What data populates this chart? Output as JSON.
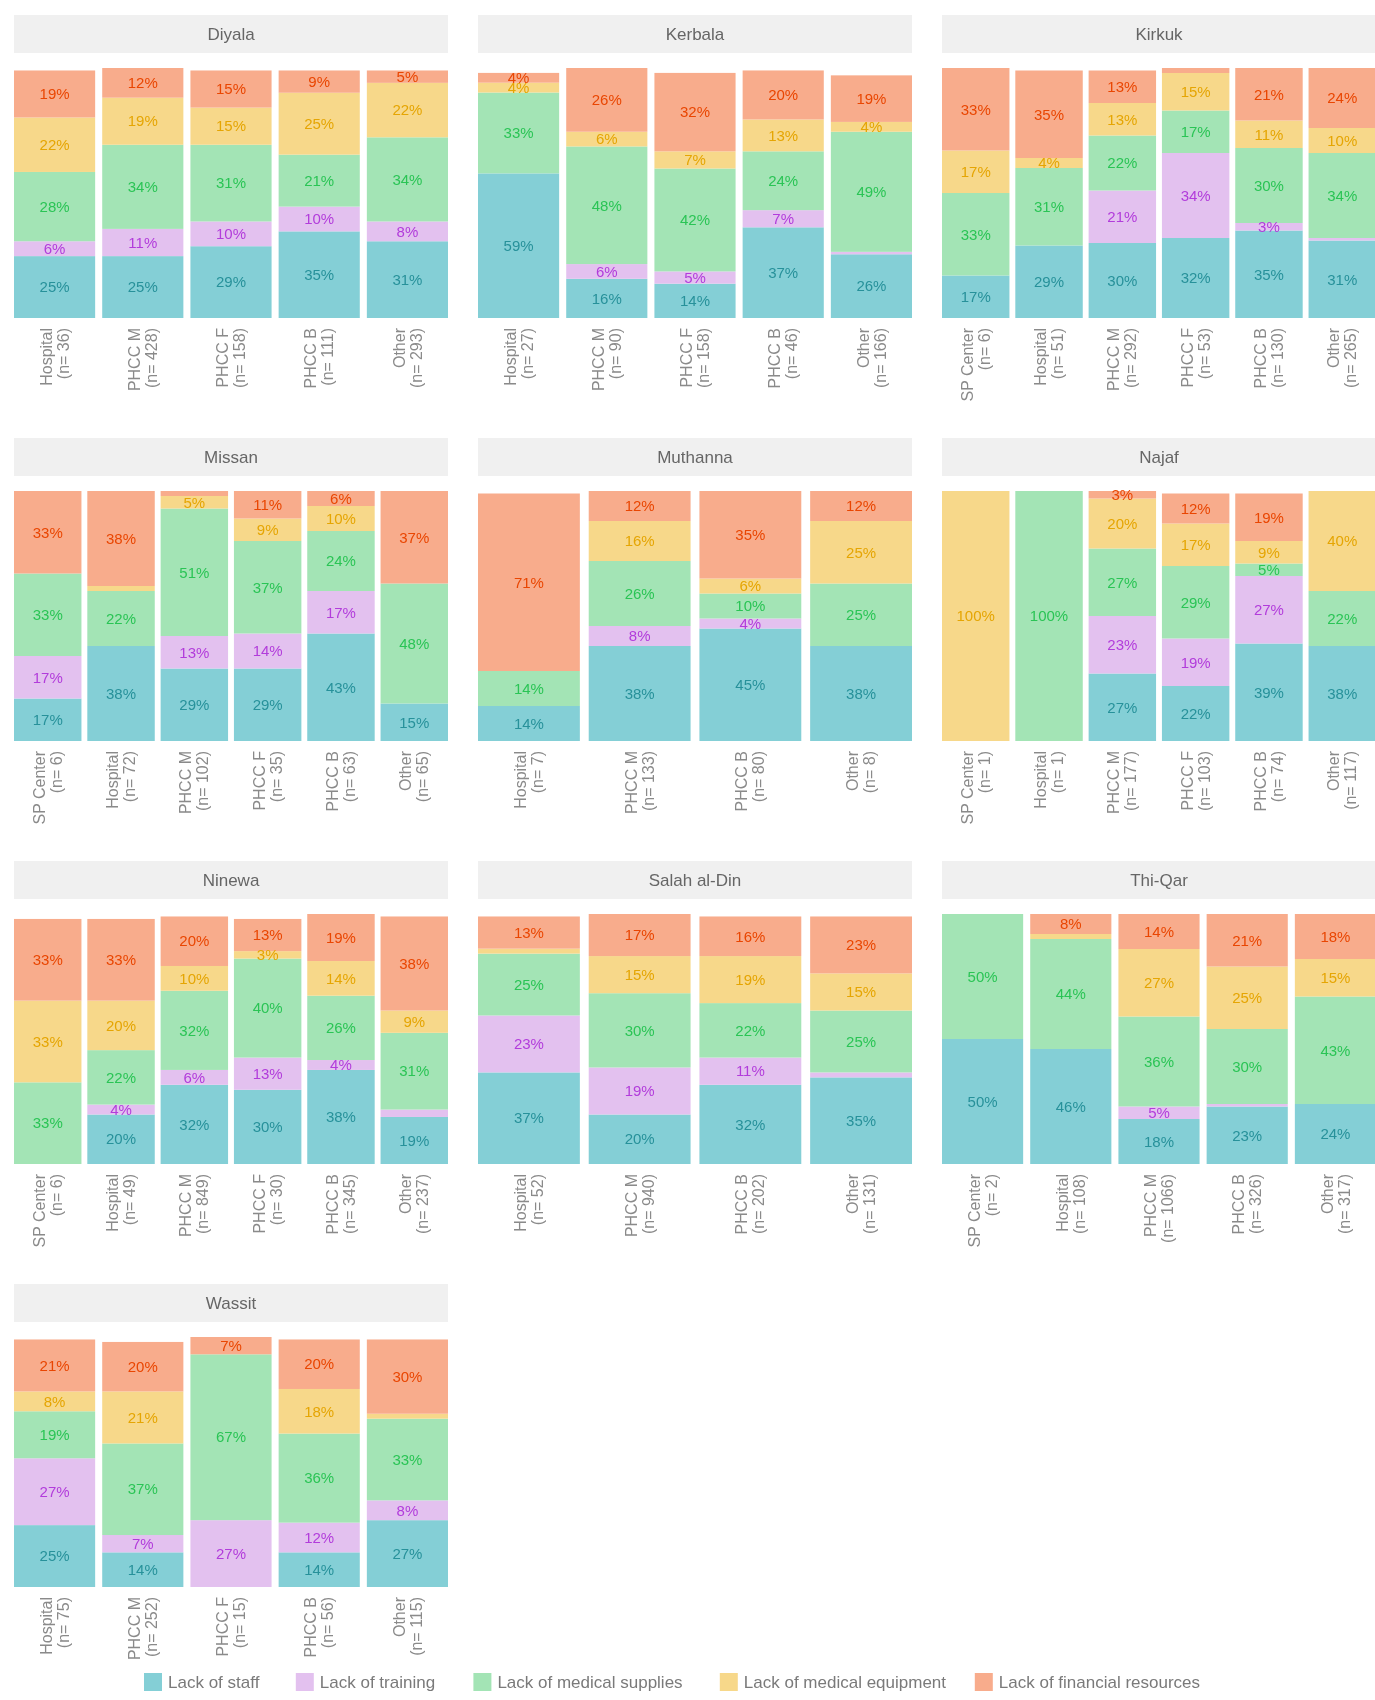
{
  "chart_data": [
    {
      "type": "bar",
      "stacked": true,
      "title": "Diyala",
      "categories": [
        "Hospital\n(n= 36)",
        "PHCC M\n(n= 428)",
        "PHCC F\n(n= 158)",
        "PHCC B\n(n= 111)",
        "Other\n(n= 293)"
      ],
      "tick_labels": "x",
      "legend": "bottom",
      "series": [
        {
          "name": "Lack of staff",
          "color": "#84cfd6",
          "values": [
            25,
            25,
            29,
            35,
            31
          ],
          "value_labels": [
            "25%",
            "25%",
            "29%",
            "35%",
            "31%"
          ]
        },
        {
          "name": "Lack of training",
          "color": "#e3c1ef",
          "values": [
            6,
            11,
            10,
            10,
            8
          ],
          "value_labels": [
            "6%",
            "11%",
            "10%",
            "10%",
            "8%"
          ]
        },
        {
          "name": "Lack of medical supplies",
          "color": "#a3e4b5",
          "values": [
            28,
            34,
            31,
            21,
            34
          ],
          "value_labels": [
            "28%",
            "34%",
            "31%",
            "21%",
            "34%"
          ]
        },
        {
          "name": "Lack of medical equipment",
          "color": "#f7d88a",
          "values": [
            22,
            19,
            15,
            25,
            22
          ],
          "value_labels": [
            "22%",
            "19%",
            "15%",
            "25%",
            "22%"
          ]
        },
        {
          "name": "Lack of financial resources",
          "color": "#f8ac8c",
          "values": [
            19,
            12,
            15,
            9,
            5
          ],
          "value_labels": [
            "19%",
            "12%",
            "15%",
            "9%",
            "5%"
          ]
        }
      ]
    },
    {
      "type": "bar",
      "stacked": true,
      "title": "Kerbala",
      "categories": [
        "Hospital\n(n= 27)",
        "PHCC M\n(n= 90)",
        "PHCC F\n(n= 158)",
        "PHCC B\n(n= 46)",
        "Other\n(n= 166)"
      ],
      "tick_labels": "x",
      "series": [
        {
          "color": "#84cfd6",
          "values": [
            59,
            16,
            14,
            37,
            26
          ],
          "value_labels": [
            "59%",
            "16%",
            "14%",
            "37%",
            "26%"
          ]
        },
        {
          "color": "#e3c1ef",
          "values": [
            0,
            6,
            5,
            7,
            1
          ],
          "value_labels": [
            null,
            "6%",
            "5%",
            "7%",
            null
          ]
        },
        {
          "color": "#a3e4b5",
          "values": [
            33,
            48,
            42,
            24,
            49
          ],
          "value_labels": [
            "33%",
            "48%",
            "42%",
            "24%",
            "49%"
          ]
        },
        {
          "color": "#f7d88a",
          "values": [
            4,
            6,
            7,
            13,
            4
          ],
          "value_labels": [
            "4%",
            "6%",
            "7%",
            "13%",
            "4%"
          ]
        },
        {
          "color": "#f8ac8c",
          "values": [
            4,
            26,
            32,
            20,
            19
          ],
          "value_labels": [
            "4%",
            "26%",
            "32%",
            "20%",
            "19%"
          ]
        }
      ]
    },
    {
      "type": "bar",
      "stacked": true,
      "title": "Kirkuk",
      "categories": [
        "SP Center\n(n= 6)",
        "Hospital\n(n= 51)",
        "PHCC M\n(n= 292)",
        "PHCC F\n(n= 53)",
        "PHCC B\n(n= 130)",
        "Other\n(n= 265)"
      ],
      "tick_labels": "x",
      "series": [
        {
          "color": "#84cfd6",
          "values": [
            17,
            29,
            30,
            32,
            35,
            31
          ],
          "value_labels": [
            "17%",
            "29%",
            "30%",
            "32%",
            "35%",
            "31%"
          ]
        },
        {
          "color": "#e3c1ef",
          "values": [
            0,
            0,
            21,
            34,
            3,
            1
          ],
          "value_labels": [
            null,
            null,
            "21%",
            "34%",
            "3%",
            null
          ]
        },
        {
          "color": "#a3e4b5",
          "values": [
            33,
            31,
            22,
            17,
            30,
            34
          ],
          "value_labels": [
            "33%",
            "31%",
            "22%",
            "17%",
            "30%",
            "34%"
          ]
        },
        {
          "color": "#f7d88a",
          "values": [
            17,
            4,
            13,
            15,
            11,
            10
          ],
          "value_labels": [
            "17%",
            "4%",
            "13%",
            "15%",
            "11%",
            "10%"
          ]
        },
        {
          "color": "#f8ac8c",
          "values": [
            33,
            35,
            13,
            2,
            21,
            24
          ],
          "value_labels": [
            "33%",
            "35%",
            "13%",
            null,
            "21%",
            "24%"
          ]
        }
      ]
    },
    {
      "type": "bar",
      "stacked": true,
      "title": "Missan",
      "categories": [
        "SP Center\n(n= 6)",
        "Hospital\n(n= 72)",
        "PHCC M\n(n= 102)",
        "PHCC F\n(n= 35)",
        "PHCC B\n(n= 63)",
        "Other\n(n= 65)"
      ],
      "tick_labels": "x",
      "series": [
        {
          "color": "#84cfd6",
          "values": [
            17,
            38,
            29,
            29,
            43,
            15
          ],
          "value_labels": [
            "17%",
            "38%",
            "29%",
            "29%",
            "43%",
            "15%"
          ]
        },
        {
          "color": "#e3c1ef",
          "values": [
            17,
            0,
            13,
            14,
            17,
            0
          ],
          "value_labels": [
            "17%",
            null,
            "13%",
            "14%",
            "17%",
            null
          ]
        },
        {
          "color": "#a3e4b5",
          "values": [
            33,
            22,
            51,
            37,
            24,
            48
          ],
          "value_labels": [
            "33%",
            "22%",
            "51%",
            "37%",
            "24%",
            "48%"
          ]
        },
        {
          "color": "#f7d88a",
          "values": [
            0,
            2,
            5,
            9,
            10,
            0
          ],
          "value_labels": [
            null,
            null,
            "5%",
            "9%",
            "10%",
            null
          ]
        },
        {
          "color": "#f8ac8c",
          "values": [
            33,
            38,
            2,
            11,
            6,
            37
          ],
          "value_labels": [
            "33%",
            "38%",
            null,
            "11%",
            "6%",
            "37%"
          ]
        }
      ]
    },
    {
      "type": "bar",
      "stacked": true,
      "title": "Muthanna",
      "categories": [
        "Hospital\n(n= 7)",
        "PHCC M\n(n= 133)",
        "PHCC B\n(n= 80)",
        "Other\n(n= 8)"
      ],
      "tick_labels": "x",
      "series": [
        {
          "color": "#84cfd6",
          "values": [
            14,
            38,
            45,
            38
          ],
          "value_labels": [
            "14%",
            "38%",
            "45%",
            "38%"
          ]
        },
        {
          "color": "#e3c1ef",
          "values": [
            0,
            8,
            4,
            0
          ],
          "value_labels": [
            null,
            "8%",
            "4%",
            null
          ]
        },
        {
          "color": "#a3e4b5",
          "values": [
            14,
            26,
            10,
            25
          ],
          "value_labels": [
            "14%",
            "26%",
            "10%",
            "25%"
          ]
        },
        {
          "color": "#f7d88a",
          "values": [
            0,
            16,
            6,
            25
          ],
          "value_labels": [
            null,
            "16%",
            "6%",
            "25%"
          ]
        },
        {
          "color": "#f8ac8c",
          "values": [
            71,
            12,
            35,
            12
          ],
          "value_labels": [
            "71%",
            "12%",
            "35%",
            "12%"
          ]
        }
      ]
    },
    {
      "type": "bar",
      "stacked": true,
      "title": "Najaf",
      "categories": [
        "SP Center\n(n= 1)",
        "Hospital\n(n= 1)",
        "PHCC M\n(n= 177)",
        "PHCC F\n(n= 103)",
        "PHCC B\n(n= 74)",
        "Other\n(n= 117)"
      ],
      "tick_labels": "x",
      "series": [
        {
          "color": "#84cfd6",
          "values": [
            0,
            0,
            27,
            22,
            39,
            38
          ],
          "value_labels": [
            null,
            null,
            "27%",
            "22%",
            "39%",
            "38%"
          ]
        },
        {
          "color": "#e3c1ef",
          "values": [
            0,
            0,
            23,
            19,
            27,
            0
          ],
          "value_labels": [
            null,
            null,
            "23%",
            "19%",
            "27%",
            null
          ]
        },
        {
          "color": "#a3e4b5",
          "values": [
            0,
            100,
            27,
            29,
            5,
            22
          ],
          "value_labels": [
            null,
            "100%",
            "27%",
            "29%",
            "5%",
            "22%"
          ]
        },
        {
          "color": "#f7d88a",
          "values": [
            100,
            0,
            20,
            17,
            9,
            40
          ],
          "value_labels": [
            "100%",
            null,
            "20%",
            "17%",
            "9%",
            "40%"
          ]
        },
        {
          "color": "#f8ac8c",
          "values": [
            0,
            0,
            3,
            12,
            19,
            0
          ],
          "value_labels": [
            null,
            null,
            "3%",
            "12%",
            "19%",
            null
          ]
        }
      ]
    },
    {
      "type": "bar",
      "stacked": true,
      "title": "Ninewa",
      "categories": [
        "SP Center\n(n= 6)",
        "Hospital\n(n= 49)",
        "PHCC M\n(n= 849)",
        "PHCC F\n(n= 30)",
        "PHCC B\n(n= 345)",
        "Other\n(n= 237)"
      ],
      "tick_labels": "x",
      "series": [
        {
          "color": "#84cfd6",
          "values": [
            0,
            20,
            32,
            30,
            38,
            19
          ],
          "value_labels": [
            null,
            "20%",
            "32%",
            "30%",
            "38%",
            "19%"
          ]
        },
        {
          "color": "#e3c1ef",
          "values": [
            0,
            4,
            6,
            13,
            4,
            3
          ],
          "value_labels": [
            null,
            "4%",
            "6%",
            "13%",
            "4%",
            null
          ]
        },
        {
          "color": "#a3e4b5",
          "values": [
            33,
            22,
            32,
            40,
            26,
            31
          ],
          "value_labels": [
            "33%",
            "22%",
            "32%",
            "40%",
            "26%",
            "31%"
          ]
        },
        {
          "color": "#f7d88a",
          "values": [
            33,
            20,
            10,
            3,
            14,
            9
          ],
          "value_labels": [
            "33%",
            "20%",
            "10%",
            "3%",
            "14%",
            "9%"
          ]
        },
        {
          "color": "#f8ac8c",
          "values": [
            33,
            33,
            20,
            13,
            19,
            38
          ],
          "value_labels": [
            "33%",
            "33%",
            "20%",
            "13%",
            "19%",
            "38%"
          ]
        }
      ]
    },
    {
      "type": "bar",
      "stacked": true,
      "title": "Salah al-Din",
      "categories": [
        "Hospital\n(n= 52)",
        "PHCC M\n(n= 940)",
        "PHCC B\n(n= 202)",
        "Other\n(n= 131)"
      ],
      "tick_labels": "x",
      "series": [
        {
          "color": "#84cfd6",
          "values": [
            37,
            20,
            32,
            35
          ],
          "value_labels": [
            "37%",
            "20%",
            "32%",
            "35%"
          ]
        },
        {
          "color": "#e3c1ef",
          "values": [
            23,
            19,
            11,
            2
          ],
          "value_labels": [
            "23%",
            "19%",
            "11%",
            null
          ]
        },
        {
          "color": "#a3e4b5",
          "values": [
            25,
            30,
            22,
            25
          ],
          "value_labels": [
            "25%",
            "30%",
            "22%",
            "25%"
          ]
        },
        {
          "color": "#f7d88a",
          "values": [
            2,
            15,
            19,
            15
          ],
          "value_labels": [
            null,
            "15%",
            "19%",
            "15%"
          ]
        },
        {
          "color": "#f8ac8c",
          "values": [
            13,
            17,
            16,
            23
          ],
          "value_labels": [
            "13%",
            "17%",
            "16%",
            "23%"
          ]
        }
      ]
    },
    {
      "type": "bar",
      "stacked": true,
      "title": "Thi-Qar",
      "categories": [
        "SP Center\n(n= 2)",
        "Hospital\n(n= 108)",
        "PHCC M\n(n= 1066)",
        "PHCC B\n(n= 326)",
        "Other\n(n= 317)"
      ],
      "tick_labels": "x",
      "series": [
        {
          "color": "#84cfd6",
          "values": [
            50,
            46,
            18,
            23,
            24
          ],
          "value_labels": [
            "50%",
            "46%",
            "18%",
            "23%",
            "24%"
          ]
        },
        {
          "color": "#e3c1ef",
          "values": [
            0,
            0,
            5,
            1,
            0
          ],
          "value_labels": [
            null,
            null,
            "5%",
            null,
            null
          ]
        },
        {
          "color": "#a3e4b5",
          "values": [
            50,
            44,
            36,
            30,
            43
          ],
          "value_labels": [
            "50%",
            "44%",
            "36%",
            "30%",
            "43%"
          ]
        },
        {
          "color": "#f7d88a",
          "values": [
            0,
            2,
            27,
            25,
            15
          ],
          "value_labels": [
            null,
            null,
            "27%",
            "25%",
            "15%"
          ]
        },
        {
          "color": "#f8ac8c",
          "values": [
            0,
            8,
            14,
            21,
            18
          ],
          "value_labels": [
            null,
            "8%",
            "14%",
            "21%",
            "18%"
          ]
        }
      ]
    },
    {
      "type": "bar",
      "stacked": true,
      "title": "Wassit",
      "categories": [
        "Hospital\n(n= 75)",
        "PHCC M\n(n= 252)",
        "PHCC F\n(n= 15)",
        "PHCC B\n(n= 56)",
        "Other\n(n= 115)"
      ],
      "tick_labels": "x",
      "series": [
        {
          "color": "#84cfd6",
          "values": [
            25,
            14,
            0,
            14,
            27
          ],
          "value_labels": [
            "25%",
            "14%",
            null,
            "14%",
            "27%"
          ]
        },
        {
          "color": "#e3c1ef",
          "values": [
            27,
            7,
            27,
            12,
            8
          ],
          "value_labels": [
            "27%",
            "7%",
            "27%",
            "12%",
            "8%"
          ]
        },
        {
          "color": "#a3e4b5",
          "values": [
            19,
            37,
            67,
            36,
            33
          ],
          "value_labels": [
            "19%",
            "37%",
            "67%",
            "36%",
            "33%"
          ]
        },
        {
          "color": "#f7d88a",
          "values": [
            8,
            21,
            0,
            18,
            2
          ],
          "value_labels": [
            "8%",
            "21%",
            null,
            "18%",
            null
          ]
        },
        {
          "color": "#f8ac8c",
          "values": [
            21,
            20,
            7,
            20,
            30
          ],
          "value_labels": [
            "21%",
            "20%",
            "7%",
            "20%",
            "30%"
          ]
        }
      ]
    }
  ]
}
